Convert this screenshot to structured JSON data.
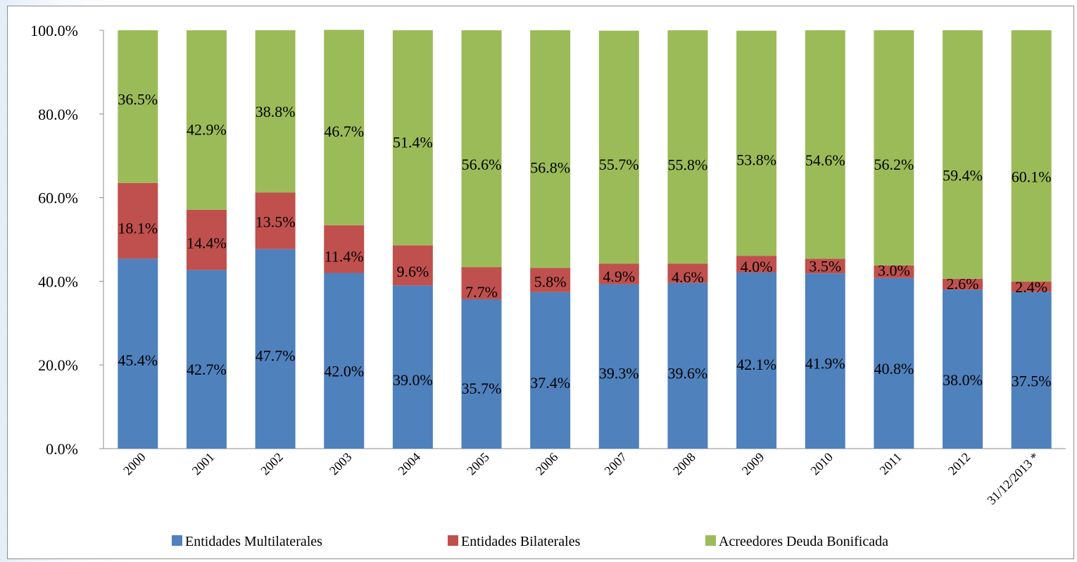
{
  "chart_data": {
    "type": "bar",
    "stacked": true,
    "categories": [
      "2000",
      "2001",
      "2002",
      "2003",
      "2004",
      "2005",
      "2006",
      "2007",
      "2008",
      "2009",
      "2010",
      "2011",
      "2012",
      "31/12/2013 *"
    ],
    "series": [
      {
        "name": "Entidades Multilaterales",
        "color": "#4f81bd",
        "values": [
          45.4,
          42.7,
          47.7,
          42.0,
          39.0,
          35.7,
          37.4,
          39.3,
          39.6,
          42.1,
          41.9,
          40.8,
          38.0,
          37.5
        ],
        "labels": [
          "45.4%",
          "42.7%",
          "47.7%",
          "42.0%",
          "39.0%",
          "35.7%",
          "37.4%",
          "39.3%",
          "39.6%",
          "42.1%",
          "41.9%",
          "40.8%",
          "38.0%",
          "37.5%"
        ]
      },
      {
        "name": "Entidades Bilaterales",
        "color": "#c0504d",
        "values": [
          18.1,
          14.4,
          13.5,
          11.4,
          9.6,
          7.7,
          5.8,
          4.9,
          4.6,
          4.0,
          3.5,
          3.0,
          2.6,
          2.4
        ],
        "labels": [
          "18.1%",
          "14.4%",
          "13.5%",
          "11.4%",
          "9.6%",
          "7.7%",
          "5.8%",
          "4.9%",
          "4.6%",
          "4.0%",
          "3.5%",
          "3.0%",
          "2.6%",
          "2.4%"
        ]
      },
      {
        "name": "Acreedores Deuda Bonificada",
        "color": "#9bbb59",
        "values": [
          36.5,
          42.9,
          38.8,
          46.7,
          51.4,
          56.6,
          56.8,
          55.7,
          55.8,
          53.8,
          54.6,
          56.2,
          59.4,
          60.1
        ],
        "labels": [
          "36.5%",
          "42.9%",
          "38.8%",
          "46.7%",
          "51.4%",
          "56.6%",
          "56.8%",
          "55.7%",
          "55.8%",
          "53.8%",
          "54.6%",
          "56.2%",
          "59.4%",
          "60.1%"
        ]
      }
    ],
    "yticks": [
      "0.0%",
      "20.0%",
      "40.0%",
      "60.0%",
      "80.0%",
      "100.0%"
    ],
    "ylim": [
      0,
      100
    ],
    "grid": false,
    "legend": "bottom"
  }
}
